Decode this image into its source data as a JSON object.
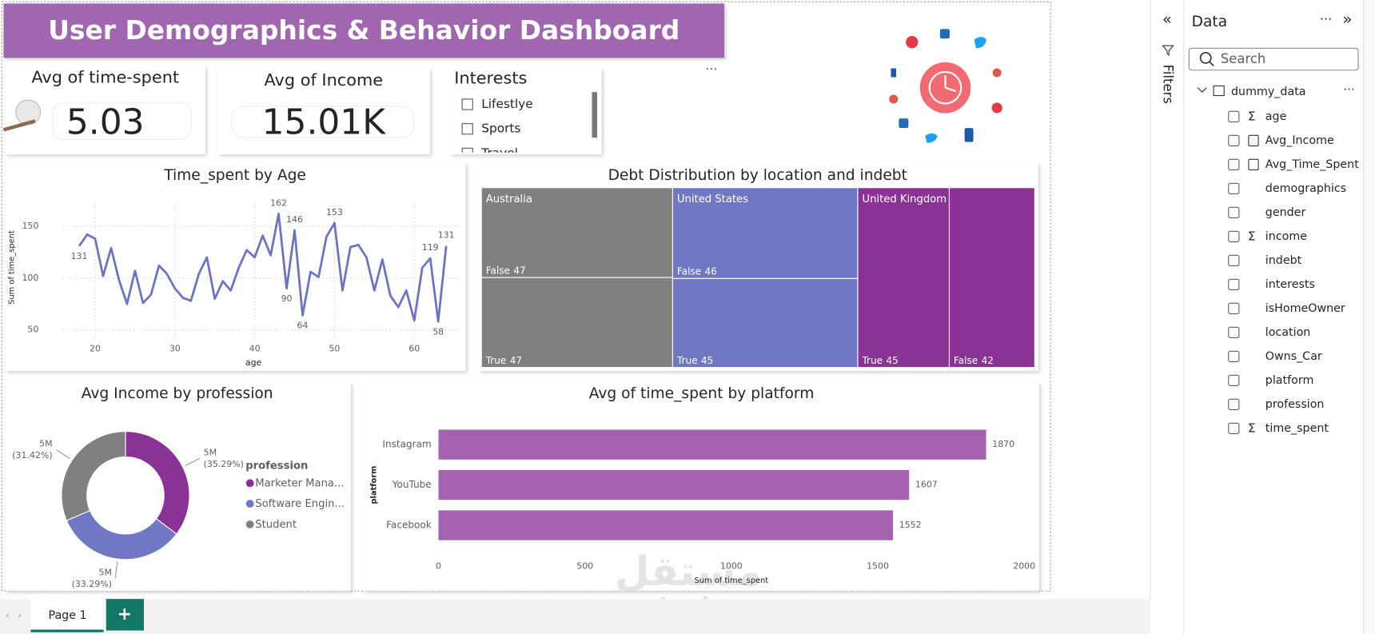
{
  "header": {
    "title": "User Demographics & Behavior Dashboard"
  },
  "cards": [
    {
      "label": "Avg of time-spent",
      "value": "5.03"
    },
    {
      "label": "Avg of Income",
      "value": "15.01K"
    }
  ],
  "slicer": {
    "title": "Interests",
    "items": [
      "Lifestlye",
      "Sports",
      "Travel"
    ]
  },
  "chart_data": [
    {
      "type": "line",
      "title": "Time_spent by Age",
      "xlabel": "age",
      "ylabel": "Sum of time_spent",
      "color": "#6b72c4",
      "x": [
        18,
        19,
        20,
        21,
        22,
        23,
        24,
        25,
        26,
        27,
        28,
        29,
        30,
        31,
        32,
        33,
        34,
        35,
        36,
        37,
        38,
        39,
        40,
        41,
        42,
        43,
        44,
        45,
        46,
        47,
        48,
        49,
        50,
        51,
        52,
        53,
        54,
        55,
        56,
        57,
        58,
        59,
        60,
        61,
        62,
        63,
        64
      ],
      "values": [
        131,
        142,
        138,
        102,
        129,
        98,
        75,
        107,
        76,
        84,
        112,
        104,
        90,
        81,
        78,
        104,
        120,
        80,
        97,
        88,
        110,
        127,
        120,
        141,
        122,
        162,
        90,
        146,
        64,
        106,
        101,
        140,
        153,
        88,
        130,
        132,
        120,
        88,
        118,
        83,
        72,
        88,
        59,
        110,
        119,
        58,
        131
      ],
      "value_labels": [
        "131",
        null,
        null,
        null,
        null,
        null,
        null,
        null,
        null,
        null,
        null,
        null,
        null,
        null,
        null,
        null,
        null,
        null,
        null,
        null,
        null,
        null,
        null,
        null,
        null,
        "162",
        "90",
        "146",
        "64",
        null,
        null,
        null,
        "153",
        null,
        null,
        null,
        null,
        null,
        null,
        null,
        null,
        null,
        null,
        null,
        "119",
        "58",
        "131"
      ],
      "xlim": [
        16,
        66
      ],
      "xticks": [
        20,
        30,
        40,
        50,
        60
      ],
      "ylim": [
        40,
        172
      ],
      "yticks": [
        50,
        100,
        150
      ],
      "grid": true
    },
    {
      "type": "treemap",
      "title": "Debt Distribution by location and indebt",
      "groups": [
        {
          "name": "Australia",
          "color": "#808080",
          "children": [
            {
              "name": "False",
              "value": 47
            },
            {
              "name": "True",
              "value": 47
            }
          ]
        },
        {
          "name": "United States",
          "color": "#7078c6",
          "children": [
            {
              "name": "False",
              "value": 46
            },
            {
              "name": "True",
              "value": 45
            }
          ]
        },
        {
          "name": "United Kingdom",
          "color": "#8a3296",
          "children": [
            {
              "name": "True",
              "value": 45
            },
            {
              "name": "False",
              "value": 42
            }
          ]
        }
      ]
    },
    {
      "type": "pie",
      "title": "Avg Income by profession",
      "legend_title": "profession",
      "legend": "right",
      "donut": true,
      "categories": [
        "Marketer Mana...",
        "Software Engin...",
        "Student"
      ],
      "colors": [
        "#8a3296",
        "#7078c6",
        "#808080"
      ],
      "values": [
        35.29,
        33.29,
        31.42
      ],
      "value_labels": [
        "(35.29%)",
        "(33.29%)",
        "(31.42%)"
      ],
      "amount_labels": [
        "5M",
        "5M",
        "5M"
      ]
    },
    {
      "type": "hbar",
      "title": "Avg of time_spent by platform",
      "xlabel": "Sum of time_spent",
      "ylabel": "platform",
      "color": "#a462b0",
      "categories": [
        "Instagram",
        "YouTube",
        "Facebook"
      ],
      "values": [
        1870,
        1607,
        1552
      ],
      "xlim": [
        0,
        2000
      ],
      "xticks": [
        0,
        500,
        1000,
        1500,
        2000
      ],
      "grid": false
    }
  ],
  "filters_label": "Filters",
  "data_pane": {
    "title": "Data",
    "search_placeholder": "Search",
    "table": "dummy_data",
    "fields": [
      {
        "name": "age",
        "kind": "sum"
      },
      {
        "name": "Avg_Income",
        "kind": "measure"
      },
      {
        "name": "Avg_Time_Spent",
        "kind": "measure"
      },
      {
        "name": "demographics",
        "kind": "none"
      },
      {
        "name": "gender",
        "kind": "none"
      },
      {
        "name": "income",
        "kind": "sum"
      },
      {
        "name": "indebt",
        "kind": "none"
      },
      {
        "name": "interests",
        "kind": "none"
      },
      {
        "name": "isHomeOwner",
        "kind": "none"
      },
      {
        "name": "location",
        "kind": "none"
      },
      {
        "name": "Owns_Car",
        "kind": "none"
      },
      {
        "name": "platform",
        "kind": "none"
      },
      {
        "name": "profession",
        "kind": "none"
      },
      {
        "name": "time_spent",
        "kind": "sum"
      }
    ]
  },
  "pages": [
    "Page 1"
  ],
  "watermark": {
    "arabic": "مستقل",
    "latin": "mostaql.com"
  }
}
